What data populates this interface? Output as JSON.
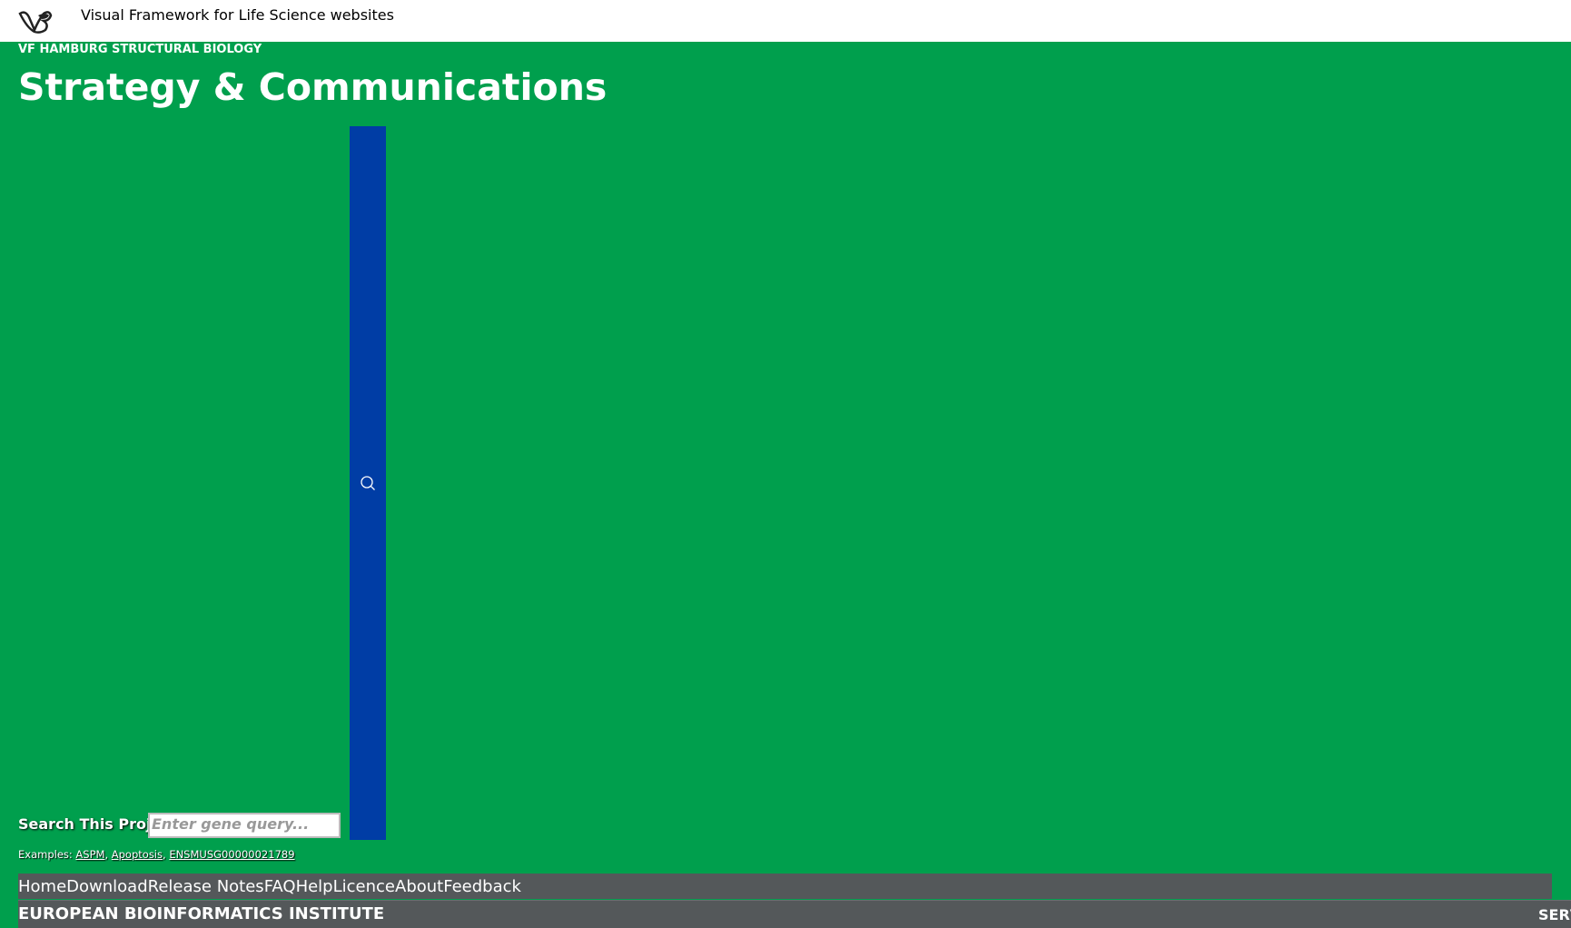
{
  "header": {
    "title": "Visual Framework for Life Science websites"
  },
  "banner": {
    "eyebrow": "VF HAMBURG STRUCTURAL BIOLOGY",
    "title": "Strategy & Communications"
  },
  "search": {
    "label": "Search This Project",
    "placeholder": "Enter gene query...",
    "examples_label": "Examples:",
    "separator": ", ",
    "examples": [
      "ASPM",
      "Apoptosis",
      "ENSMUSG00000021789"
    ]
  },
  "nav": [
    "Home",
    "Download",
    "Release Notes",
    "FAQ",
    "Help",
    "Licence",
    "About",
    "Feedback"
  ],
  "footer": {
    "title": "EUROPEAN BIOINFORMATICS INSTITUTE",
    "right": "SERV"
  }
}
